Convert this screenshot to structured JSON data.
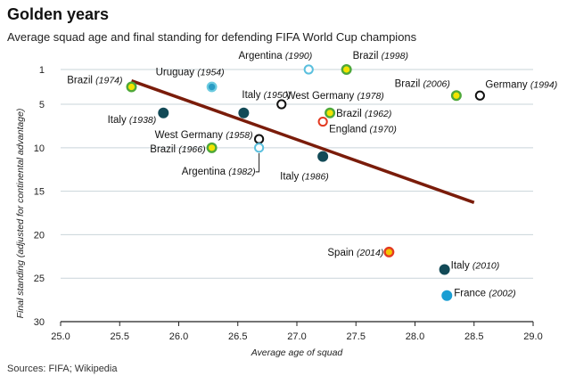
{
  "header": {
    "title": "Golden years",
    "subtitle": "Average squad age and final standing for defending FIFA World Cup champions"
  },
  "footer": {
    "source": "Sources: FIFA; Wikipedia"
  },
  "colors": {
    "trend": "#7a1c0a",
    "grid": "#c9d4da",
    "brazil_fill": "#f2e400",
    "brazil_ring": "#4ea83a",
    "spain_fill": "#f5c400",
    "spain_ring": "#e33a21",
    "england_ring": "#e33a21",
    "italy_fill": "#124a57",
    "germany_ring": "#111111",
    "uruguay_fill": "#2a9cc4",
    "uruguay_ring": "#6ccbe0",
    "argentina_ring": "#5bc0de",
    "france_fill": "#1a9ed3"
  },
  "chart_data": {
    "type": "scatter",
    "title": "Golden years",
    "subtitle": "Average squad age and final standing for defending FIFA World Cup champions",
    "xlabel": "Average age of squad",
    "ylabel": "Final standing (adjusted for continental advantage)",
    "xlim": [
      25.0,
      29.0
    ],
    "ylim": [
      30,
      0
    ],
    "y_inverted": true,
    "x_ticks": [
      "25.0",
      "25.5",
      "26.0",
      "26.5",
      "27.0",
      "27.5",
      "28.0",
      "28.5",
      "29.0"
    ],
    "y_ticks": [
      "1",
      "5",
      "10",
      "15",
      "20",
      "25",
      "30"
    ],
    "grid": "horizontal",
    "trendline": {
      "x": [
        25.6,
        28.5
      ],
      "y": [
        2.3,
        16.3
      ]
    },
    "points": [
      {
        "team": "Brazil",
        "year": "(1974)",
        "x": 25.6,
        "y": 3,
        "style": "brazil"
      },
      {
        "team": "Uruguay",
        "year": "(1954)",
        "x": 26.28,
        "y": 3,
        "style": "uruguay"
      },
      {
        "team": "Italy",
        "year": "(1938)",
        "x": 25.87,
        "y": 6,
        "style": "italy"
      },
      {
        "team": "Italy",
        "year": "(1950)",
        "x": 26.55,
        "y": 6,
        "style": "italy"
      },
      {
        "team": "Argentina",
        "year": "(1990)",
        "x": 27.1,
        "y": 1,
        "style": "argentina"
      },
      {
        "team": "Brazil",
        "year": "(1998)",
        "x": 27.42,
        "y": 1,
        "style": "brazil"
      },
      {
        "team": "West Germany",
        "year": "(1978)",
        "x": 26.87,
        "y": 5,
        "style": "germany"
      },
      {
        "team": "Brazil",
        "year": "(1962)",
        "x": 27.28,
        "y": 6,
        "style": "brazil"
      },
      {
        "team": "England",
        "year": "(1970)",
        "x": 27.22,
        "y": 7,
        "style": "england"
      },
      {
        "team": "Brazil",
        "year": "(2006)",
        "x": 28.35,
        "y": 4,
        "style": "brazil"
      },
      {
        "team": "Germany",
        "year": "(1994)",
        "x": 28.55,
        "y": 4,
        "style": "germany"
      },
      {
        "team": "West Germany",
        "year": "(1958)",
        "x": 26.68,
        "y": 9,
        "style": "germany"
      },
      {
        "team": "Brazil",
        "year": "(1966)",
        "x": 26.28,
        "y": 10,
        "style": "brazil"
      },
      {
        "team": "Argentina",
        "year": "(1982)",
        "x": 26.68,
        "y": 10,
        "style": "argentina"
      },
      {
        "team": "Italy",
        "year": "(1986)",
        "x": 27.22,
        "y": 11,
        "style": "italy"
      },
      {
        "team": "Spain",
        "year": "(2014)",
        "x": 27.78,
        "y": 22,
        "style": "spain"
      },
      {
        "team": "Italy",
        "year": "(2010)",
        "x": 28.25,
        "y": 24,
        "style": "italy"
      },
      {
        "team": "France",
        "year": "(2002)",
        "x": 28.27,
        "y": 27,
        "style": "france"
      }
    ]
  }
}
